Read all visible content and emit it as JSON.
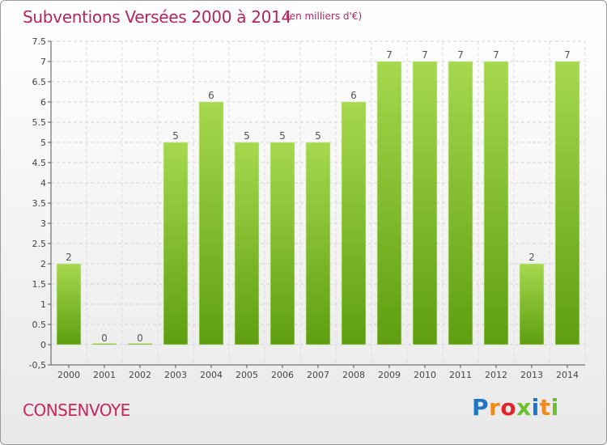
{
  "title": "Subventions Versées 2000 à 2014",
  "subtitle": "(en milliers d'€)",
  "place": "CONSENVOYE",
  "logo": {
    "letters": [
      "P",
      "r",
      "o",
      "x",
      "i",
      "t",
      "i"
    ],
    "colors": [
      "#1f74c6",
      "#f08a1c",
      "#e0262b",
      "#6bbf2c",
      "#1f74c6",
      "#f08a1c",
      "#6bbf2c"
    ]
  },
  "colors": {
    "bar_top": "#a6d84e",
    "bar_bottom": "#5e9e10",
    "title": "#b5245f"
  },
  "chart_data": {
    "type": "bar",
    "categories": [
      "2000",
      "2001",
      "2002",
      "2003",
      "2004",
      "2005",
      "2006",
      "2007",
      "2008",
      "2009",
      "2010",
      "2011",
      "2012",
      "2013",
      "2014"
    ],
    "values": [
      2,
      0,
      0,
      5,
      6,
      5,
      5,
      5,
      6,
      7,
      7,
      7,
      7,
      2,
      7
    ],
    "data_labels": [
      "2",
      "0",
      "0",
      "5",
      "6",
      "5",
      "5",
      "5",
      "6",
      "7",
      "7",
      "7",
      "7",
      "2",
      "7"
    ],
    "ylim": [
      -0.5,
      7.5
    ],
    "yticks": [
      "-0,5",
      "0",
      "0.5",
      "1",
      "1.5",
      "2",
      "2.5",
      "3",
      "3.5",
      "4",
      "4.5",
      "5",
      "5.5",
      "6",
      "6.5",
      "7",
      "7.5"
    ],
    "ytick_values": [
      -0.5,
      0,
      0.5,
      1,
      1.5,
      2,
      2.5,
      3,
      3.5,
      4,
      4.5,
      5,
      5.5,
      6,
      6.5,
      7,
      7.5
    ],
    "grid": true
  }
}
